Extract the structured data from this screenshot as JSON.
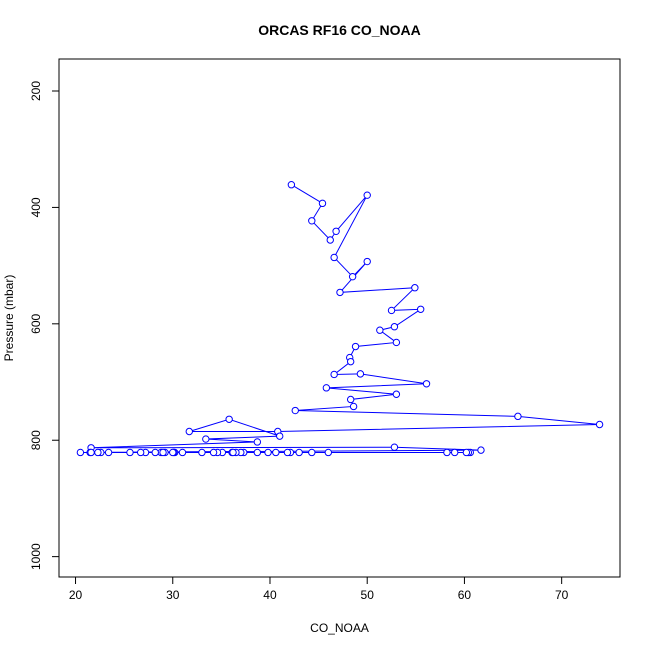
{
  "chart_data": {
    "type": "line",
    "title": "ORCAS RF16 CO_NOAA",
    "xlabel": "CO_NOAA",
    "ylabel": "Pressure (mbar)",
    "xlim": [
      18.3,
      76.0
    ],
    "ylim": [
      1035,
      145
    ],
    "y_reversed": true,
    "xticks": [
      20,
      30,
      40,
      50,
      60,
      70
    ],
    "yticks": [
      200,
      400,
      600,
      800,
      1000
    ],
    "series_color": "#0000ff",
    "markers": "open-circle",
    "grid": false,
    "series": [
      {
        "x": [
          42.2,
          45.4,
          44.3,
          46.2,
          46.8,
          50.0,
          46.6,
          48.5,
          50.0,
          47.2,
          54.9,
          52.5,
          55.5,
          52.8,
          51.3,
          53.0,
          48.8,
          48.2,
          48.3,
          46.6,
          49.3,
          56.1,
          45.8,
          53.0,
          48.3,
          48.6,
          42.6,
          65.5,
          73.9,
          40.8,
          31.7,
          35.8,
          41.0,
          33.4,
          38.7,
          21.6,
          52.8,
          61.7,
          20.5,
          60.6,
          30.2,
          58.2,
          30.1,
          60.4,
          46.0,
          59.0,
          44.3,
          42.1,
          41.8,
          40.6,
          39.8,
          38.7,
          37.3,
          37.0,
          36.5,
          36.1,
          35.1,
          34.6,
          34.2,
          33.0,
          31.0,
          30.0,
          29.2,
          28.8,
          28.2,
          27.2,
          26.7,
          25.6,
          23.4,
          22.6,
          22.3,
          21.5,
          21.6,
          29.0,
          36.2,
          43.0,
          60.2
        ],
        "y": [
          361,
          393,
          423,
          456,
          441,
          379,
          486,
          519,
          493,
          546,
          538,
          577,
          575,
          605,
          611,
          632,
          639,
          658,
          665,
          687,
          686,
          703,
          710,
          721,
          730,
          742,
          749,
          759,
          773,
          785,
          785,
          764,
          793,
          798,
          803,
          813,
          812,
          817,
          821,
          821,
          821,
          821,
          821,
          821,
          821,
          821,
          821,
          821,
          821,
          821,
          821,
          821,
          821,
          821,
          821,
          821,
          821,
          821,
          821,
          821,
          821,
          821,
          821,
          821,
          821,
          821,
          821,
          821,
          821,
          821,
          821,
          821,
          821,
          821,
          821,
          821,
          821
        ]
      }
    ]
  }
}
